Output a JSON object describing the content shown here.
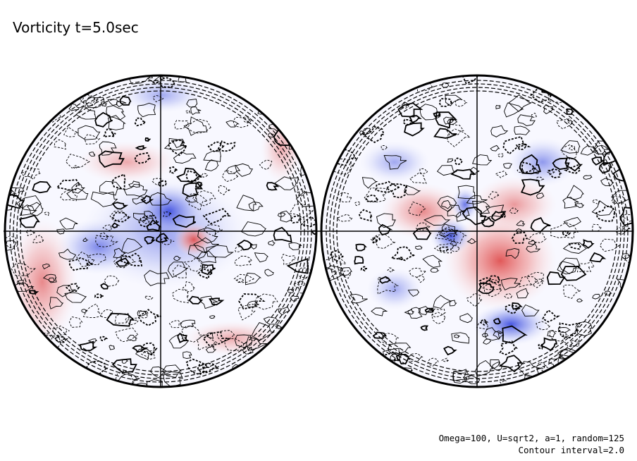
{
  "header": {
    "title": "Vorticity t=5.0sec"
  },
  "footer": {
    "parameters": "Omega=100, U=sqrt2, a=1, random=125",
    "contour_interval": "Contour interval=2.0"
  }
}
